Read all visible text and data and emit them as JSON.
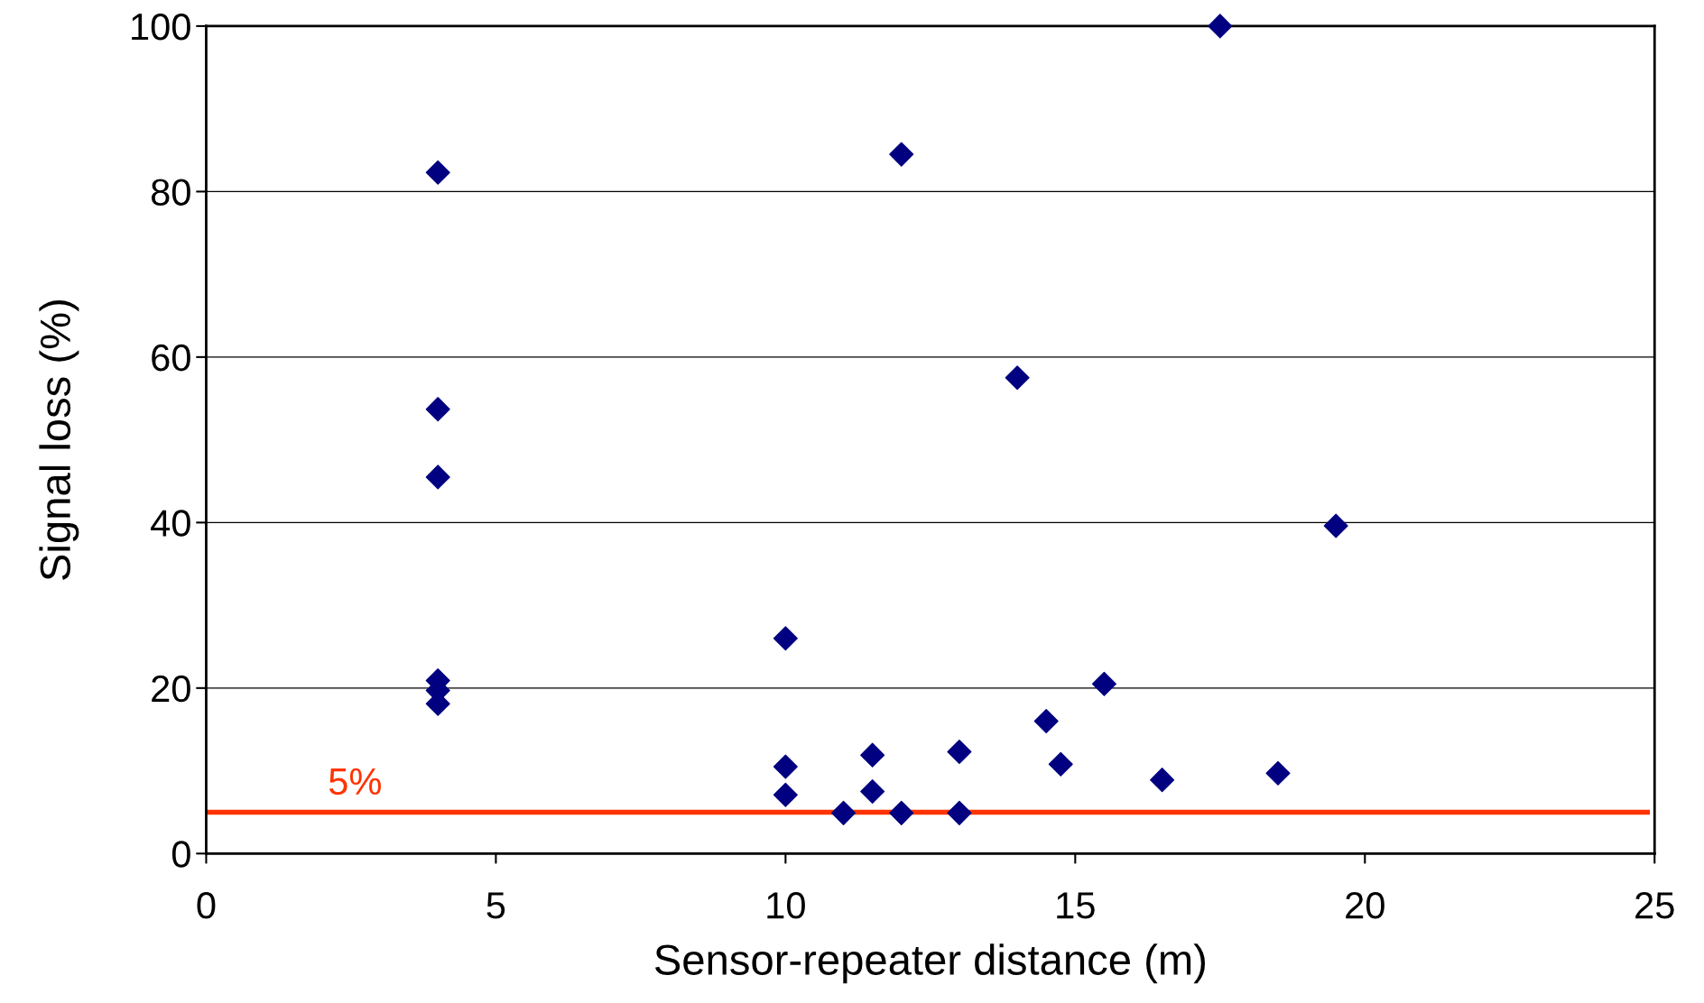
{
  "chart_data": {
    "type": "scatter",
    "xlabel": "Sensor-repeater distance (m)",
    "ylabel": "Signal loss (%)",
    "x": [
      4,
      4,
      4,
      4,
      4,
      4,
      10,
      10,
      10,
      11,
      11.5,
      11.5,
      12,
      12,
      13,
      13,
      14,
      14.5,
      14.75,
      15.5,
      16.5,
      17.5,
      18.5,
      19.5
    ],
    "series": [
      {
        "color": "#000080",
        "values": [
          82.3,
          53.7,
          45.5,
          20.9,
          19.7,
          18.1,
          26.0,
          10.5,
          7.1,
          4.9,
          11.9,
          7.5,
          84.5,
          4.9,
          12.3,
          4.9,
          57.5,
          16.0,
          10.8,
          20.5,
          8.9,
          100,
          9.7,
          39.6
        ]
      }
    ],
    "marker": "diamond",
    "xlim": [
      0,
      25
    ],
    "xticks": [
      0,
      5,
      10,
      15,
      20,
      25
    ],
    "ylim": [
      0,
      100
    ],
    "yticks": [
      0,
      20,
      40,
      60,
      80,
      100
    ],
    "grid": "y",
    "ref_lines": [
      {
        "axis": "y",
        "value": 5,
        "label": "5%",
        "color": "#ff3300"
      }
    ]
  }
}
